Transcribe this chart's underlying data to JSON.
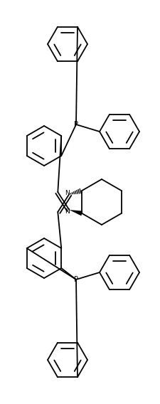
{
  "background": "#ffffff",
  "line_color": "#000000",
  "lw": 1.3,
  "fig_width": 2.26,
  "fig_height": 5.68,
  "dpi": 100,
  "xlim": [
    0,
    226
  ],
  "ylim": [
    0,
    568
  ]
}
